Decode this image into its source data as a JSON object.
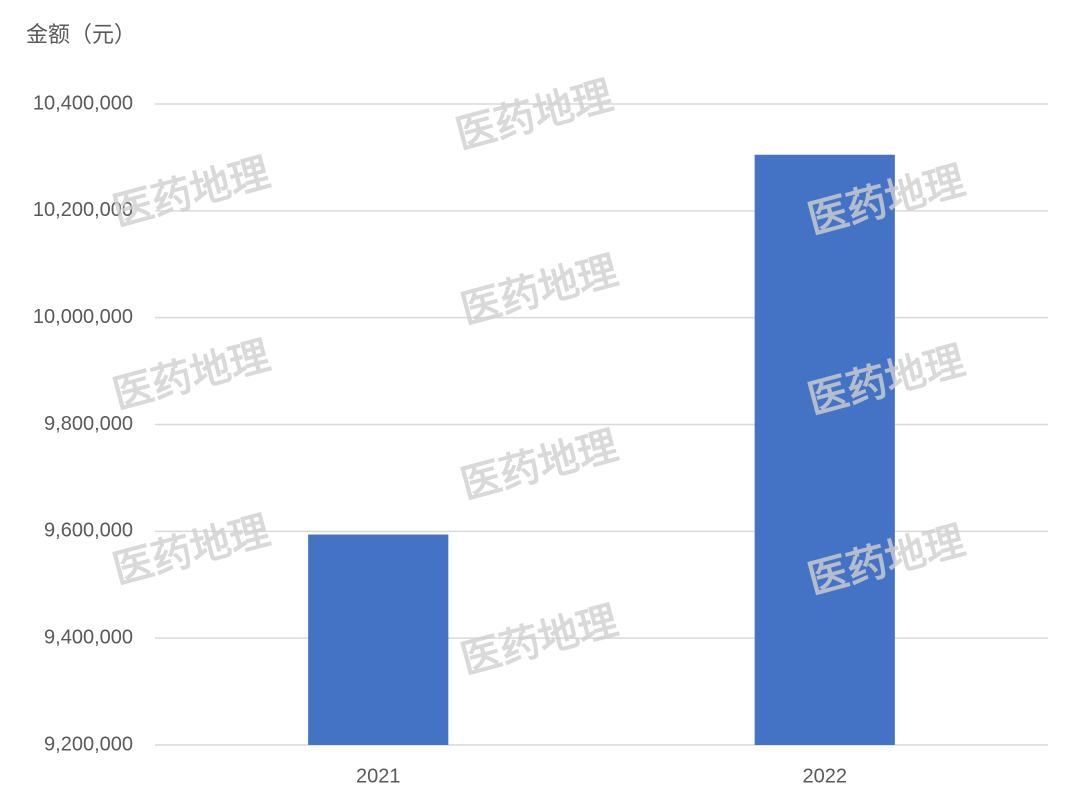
{
  "chart_data": {
    "type": "bar",
    "y_axis_label": "金额（元）",
    "watermark": "医药地理",
    "categories": [
      "2021",
      "2022"
    ],
    "values": [
      9594000,
      10305000
    ],
    "color": "#4472c4",
    "ylim": [
      9200000,
      10400000
    ],
    "yticks": [
      {
        "value": 9200000,
        "label": "9,200,000"
      },
      {
        "value": 9400000,
        "label": "9,400,000"
      },
      {
        "value": 9600000,
        "label": "9,600,000"
      },
      {
        "value": 9800000,
        "label": "9,800,000"
      },
      {
        "value": 10000000,
        "label": "10,000,000"
      },
      {
        "value": 10200000,
        "label": "10,200,000"
      },
      {
        "value": 10400000,
        "label": "10,400,000"
      }
    ],
    "grid": true
  }
}
